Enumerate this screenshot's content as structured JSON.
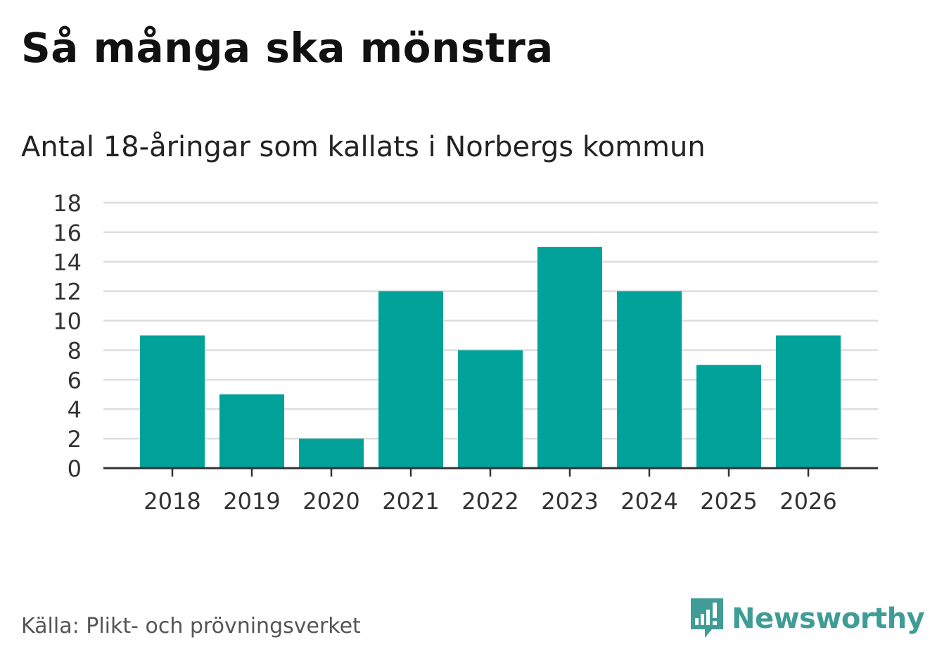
{
  "header": {
    "title": "Så många ska mönstra",
    "subtitle": "Antal 18-åringar som kallats i Norbergs kommun"
  },
  "footer": {
    "source": "Källa: Plikt- och prövningsverket",
    "brand": "Newsworthy"
  },
  "colors": {
    "bar": "#00a29a",
    "grid": "#dddddd",
    "axis": "#333333",
    "brand": "#3f9c96"
  },
  "chart_data": {
    "type": "bar",
    "title": "Så många ska mönstra",
    "subtitle": "Antal 18-åringar som kallats i Norbergs kommun",
    "xlabel": "",
    "ylabel": "",
    "categories": [
      "2018",
      "2019",
      "2020",
      "2021",
      "2022",
      "2023",
      "2024",
      "2025",
      "2026"
    ],
    "values": [
      9,
      5,
      2,
      12,
      8,
      15,
      12,
      7,
      9
    ],
    "ylim": [
      0,
      18
    ],
    "yticks": [
      0,
      2,
      4,
      6,
      8,
      10,
      12,
      14,
      16,
      18
    ],
    "grid": true,
    "legend": "none"
  }
}
